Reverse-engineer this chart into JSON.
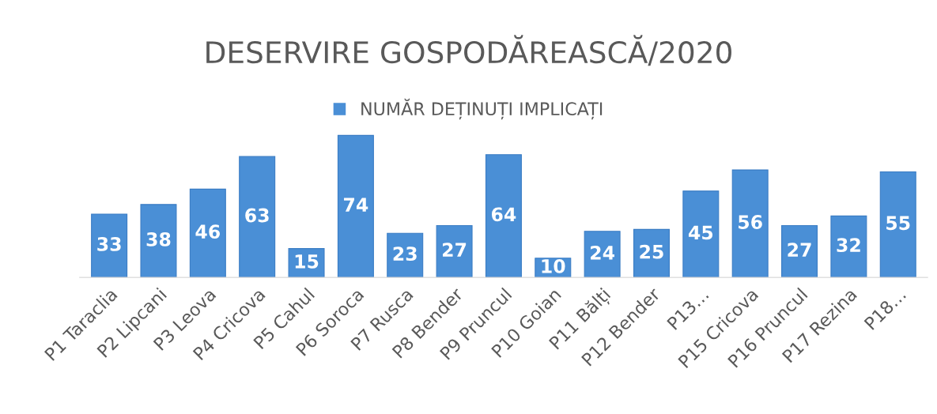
{
  "chart_data": {
    "type": "bar",
    "title": "DESERVIRE GOSPODĂREASCĂ/2020",
    "categories": [
      "P1 Taraclia",
      "P2 Lipcani",
      "P3 Leova",
      "P4 Cricova",
      "P5 Cahul",
      "P6 Soroca",
      "P7 Rusca",
      "P8 Bender",
      "P9 Pruncul",
      "P10 Goian",
      "P11 Bălți",
      "P12 Bender",
      "P13…",
      "P15 Cricova",
      "P16 Pruncul",
      "P17 Rezina",
      "P18…"
    ],
    "series": [
      {
        "name": "NUMĂR DEȚINUȚI IMPLICAȚI",
        "color": "#4a8fd6",
        "values": [
          33,
          38,
          46,
          63,
          15,
          74,
          23,
          27,
          64,
          10,
          24,
          25,
          45,
          56,
          27,
          32,
          55
        ]
      }
    ],
    "data_labels": true,
    "legend": "top",
    "grid": false
  }
}
